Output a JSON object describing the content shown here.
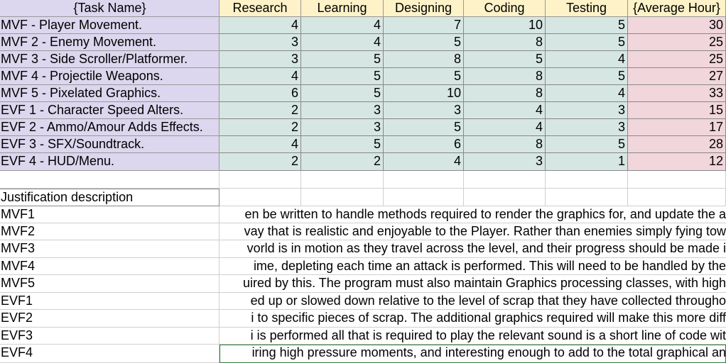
{
  "header": {
    "task": "{Task Name}",
    "research": "Research",
    "learning": "Learning",
    "designing": "Designing",
    "coding": "Coding",
    "testing": "Testing",
    "avg": "{Average Hour}"
  },
  "rows": [
    {
      "task": "MVF - Player Movement.",
      "research": "4",
      "learning": "4",
      "designing": "7",
      "coding": "10",
      "testing": "5",
      "avg": "30"
    },
    {
      "task": "MVF 2 - Enemy Movement.",
      "research": "3",
      "learning": "4",
      "designing": "5",
      "coding": "8",
      "testing": "5",
      "avg": "25"
    },
    {
      "task": "MVF 3 - Side Scroller/Platformer.",
      "research": "3",
      "learning": "5",
      "designing": "8",
      "coding": "5",
      "testing": "4",
      "avg": "25"
    },
    {
      "task": "MVF 4 - Projectile Weapons.",
      "research": "4",
      "learning": "5",
      "designing": "5",
      "coding": "8",
      "testing": "5",
      "avg": "27"
    },
    {
      "task": "MVF 5 - Pixelated Graphics.",
      "research": "6",
      "learning": "5",
      "designing": "10",
      "coding": "8",
      "testing": "4",
      "avg": "33"
    },
    {
      "task": "EVF 1 - Character Speed Alters.",
      "research": "2",
      "learning": "3",
      "designing": "3",
      "coding": "4",
      "testing": "3",
      "avg": "15"
    },
    {
      "task": "EVF  2 - Ammo/Amour Adds Effects.",
      "research": "2",
      "learning": "3",
      "designing": "5",
      "coding": "4",
      "testing": "3",
      "avg": "17"
    },
    {
      "task": "EVF 3 - SFX/Soundtrack.",
      "research": "4",
      "learning": "5",
      "designing": "6",
      "coding": "8",
      "testing": "5",
      "avg": "28"
    },
    {
      "task": "EVF 4 - HUD/Menu.",
      "research": "2",
      "learning": "2",
      "designing": "4",
      "coding": "3",
      "testing": "1",
      "avg": "12"
    }
  ],
  "justification": {
    "heading": "Justification description",
    "items": [
      {
        "label": "MVF1",
        "text": "en be written to handle methods required to render the graphics for, and update the a"
      },
      {
        "label": "MVF2",
        "text": "vay that is realistic and enjoyable to the Player. Rather than enemies simply fying tow"
      },
      {
        "label": "MVF3",
        "text": "vorld is in motion as they travel across the level, and their progress should be made i"
      },
      {
        "label": "MVF4",
        "text": "ime, depleting each time an attack is performed. This will need to be handled by the"
      },
      {
        "label": "MVF5",
        "text": "uired by this. The program must also maintain Graphics processing classes, with high"
      },
      {
        "label": "EVF1",
        "text": "ed up or slowed down relative to the level of scrap that they have collected througho"
      },
      {
        "label": "EVF2",
        "text": "i to specific pieces of scrap. The additional graphics required will make this more diff"
      },
      {
        "label": "EVF3",
        "text": "i is performed all that is required to play the relevant sound is a short line of code wit"
      },
      {
        "label": "EVF4",
        "text": "iring high pressure moments, and interesting enough to add to the total graphical an"
      }
    ]
  }
}
